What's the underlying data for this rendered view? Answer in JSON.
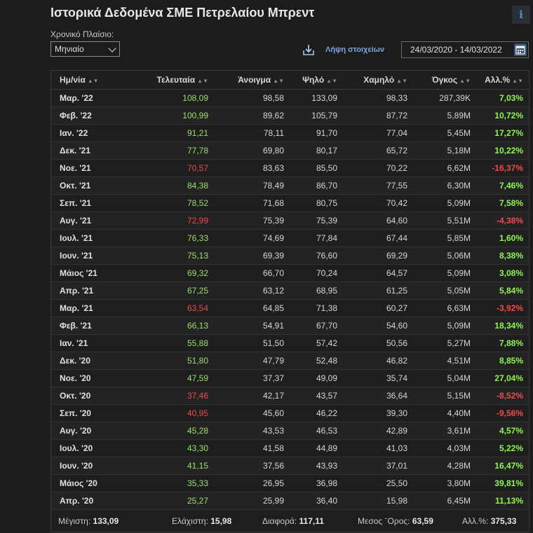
{
  "header": {
    "title": "Ιστορικά Δεδομένα ΣΜΕ Πετρελαίου Μπρεντ",
    "info_label": "i"
  },
  "controls": {
    "timeframe_label": "Χρονικό Πλαίσιο:",
    "timeframe_value": "Μηνιαίο",
    "download_label": "Λήψη στοιχείων",
    "date_range": "24/03/2020 - 14/03/2022"
  },
  "table": {
    "columns": [
      "Ημ/νία",
      "Τελευταία",
      "Άνοιγμα",
      "Ψηλό",
      "Χαμηλό",
      "Όγκος",
      "Αλλ.%"
    ],
    "rows": [
      {
        "date": "Μαρ. '22",
        "last": "108,09",
        "open": "98,58",
        "high": "133,09",
        "low": "98,33",
        "vol": "287,39K",
        "chg": "7,03%",
        "dir": "pos"
      },
      {
        "date": "Φεβ. '22",
        "last": "100,99",
        "open": "89,62",
        "high": "105,79",
        "low": "87,72",
        "vol": "5,89M",
        "chg": "10,72%",
        "dir": "pos"
      },
      {
        "date": "Ιαν. '22",
        "last": "91,21",
        "open": "78,11",
        "high": "91,70",
        "low": "77,04",
        "vol": "5,45M",
        "chg": "17,27%",
        "dir": "pos"
      },
      {
        "date": "Δεκ. '21",
        "last": "77,78",
        "open": "69,80",
        "high": "80,17",
        "low": "65,72",
        "vol": "5,18M",
        "chg": "10,22%",
        "dir": "pos"
      },
      {
        "date": "Νοε. '21",
        "last": "70,57",
        "open": "83,63",
        "high": "85,50",
        "low": "70,22",
        "vol": "6,62M",
        "chg": "-16,37%",
        "dir": "neg"
      },
      {
        "date": "Οκτ. '21",
        "last": "84,38",
        "open": "78,49",
        "high": "86,70",
        "low": "77,55",
        "vol": "6,30M",
        "chg": "7,46%",
        "dir": "pos"
      },
      {
        "date": "Σεπ. '21",
        "last": "78,52",
        "open": "71,68",
        "high": "80,75",
        "low": "70,42",
        "vol": "5,09M",
        "chg": "7,58%",
        "dir": "pos"
      },
      {
        "date": "Αυγ. '21",
        "last": "72,99",
        "open": "75,39",
        "high": "75,39",
        "low": "64,60",
        "vol": "5,51M",
        "chg": "-4,38%",
        "dir": "neg"
      },
      {
        "date": "Ιουλ. '21",
        "last": "76,33",
        "open": "74,69",
        "high": "77,84",
        "low": "67,44",
        "vol": "5,85M",
        "chg": "1,60%",
        "dir": "pos"
      },
      {
        "date": "Ιουν. '21",
        "last": "75,13",
        "open": "69,39",
        "high": "76,60",
        "low": "69,29",
        "vol": "5,06M",
        "chg": "8,38%",
        "dir": "pos"
      },
      {
        "date": "Μάιος '21",
        "last": "69,32",
        "open": "66,70",
        "high": "70,24",
        "low": "64,57",
        "vol": "5,09M",
        "chg": "3,08%",
        "dir": "pos"
      },
      {
        "date": "Απρ. '21",
        "last": "67,25",
        "open": "63,12",
        "high": "68,95",
        "low": "61,25",
        "vol": "5,05M",
        "chg": "5,84%",
        "dir": "pos"
      },
      {
        "date": "Μαρ. '21",
        "last": "63,54",
        "open": "64,85",
        "high": "71,38",
        "low": "60,27",
        "vol": "6,63M",
        "chg": "-3,92%",
        "dir": "neg"
      },
      {
        "date": "Φεβ. '21",
        "last": "66,13",
        "open": "54,91",
        "high": "67,70",
        "low": "54,60",
        "vol": "5,09M",
        "chg": "18,34%",
        "dir": "pos"
      },
      {
        "date": "Ιαν. '21",
        "last": "55,88",
        "open": "51,50",
        "high": "57,42",
        "low": "50,56",
        "vol": "5,27M",
        "chg": "7,88%",
        "dir": "pos"
      },
      {
        "date": "Δεκ. '20",
        "last": "51,80",
        "open": "47,79",
        "high": "52,48",
        "low": "46,82",
        "vol": "4,51M",
        "chg": "8,85%",
        "dir": "pos"
      },
      {
        "date": "Νοε. '20",
        "last": "47,59",
        "open": "37,37",
        "high": "49,09",
        "low": "35,74",
        "vol": "5,04M",
        "chg": "27,04%",
        "dir": "pos"
      },
      {
        "date": "Οκτ. '20",
        "last": "37,46",
        "open": "42,17",
        "high": "43,57",
        "low": "36,64",
        "vol": "5,15M",
        "chg": "-8,52%",
        "dir": "neg"
      },
      {
        "date": "Σεπ. '20",
        "last": "40,95",
        "open": "45,60",
        "high": "46,22",
        "low": "39,30",
        "vol": "4,40M",
        "chg": "-9,56%",
        "dir": "neg"
      },
      {
        "date": "Αυγ. '20",
        "last": "45,28",
        "open": "43,53",
        "high": "46,53",
        "low": "42,89",
        "vol": "3,61M",
        "chg": "4,57%",
        "dir": "pos"
      },
      {
        "date": "Ιουλ. '20",
        "last": "43,30",
        "open": "41,58",
        "high": "44,89",
        "low": "41,03",
        "vol": "4,03M",
        "chg": "5,22%",
        "dir": "pos"
      },
      {
        "date": "Ιουν. '20",
        "last": "41,15",
        "open": "37,56",
        "high": "43,93",
        "low": "37,01",
        "vol": "4,28M",
        "chg": "16,47%",
        "dir": "pos"
      },
      {
        "date": "Μάιος '20",
        "last": "35,33",
        "open": "26,95",
        "high": "36,98",
        "low": "25,50",
        "vol": "3,80M",
        "chg": "39,81%",
        "dir": "pos"
      },
      {
        "date": "Απρ. '20",
        "last": "25,27",
        "open": "25,99",
        "high": "36,40",
        "low": "15,98",
        "vol": "6,45M",
        "chg": "11,13%",
        "dir": "pos"
      }
    ]
  },
  "summary": {
    "max_label": "Μέγιστη:",
    "max_value": "133,09",
    "min_label": "Ελάχιστη:",
    "min_value": "15,98",
    "diff_label": "Διαφορά:",
    "diff_value": "117,11",
    "avg_label": "Μεσος ¨Ορος:",
    "avg_value": "63,59",
    "chg_label": "Αλλ.%:",
    "chg_value": "375,33"
  },
  "colors": {
    "positive": "#9be06a",
    "negative": "#ef4a4a",
    "link": "#7aa7e0"
  }
}
